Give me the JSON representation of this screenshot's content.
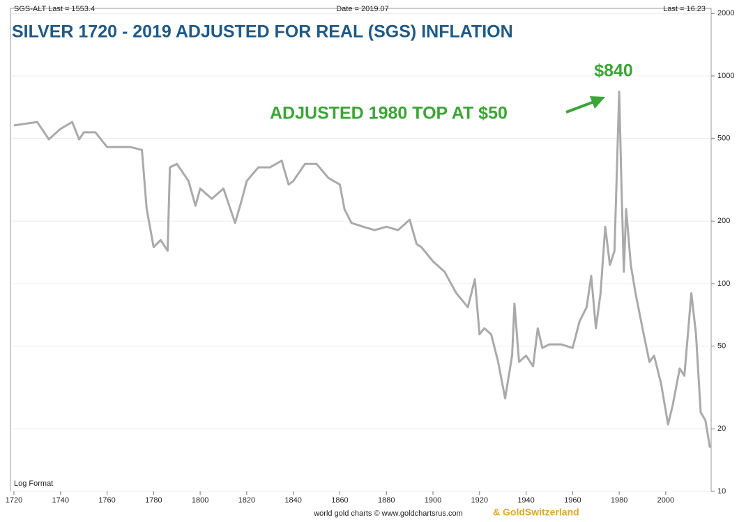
{
  "chart_data": {
    "type": "line",
    "header_left": "SGS-ALT Last = 1553.4",
    "header_center": "Date = 2019.07",
    "header_right": "Last = 16.23",
    "title": "SILVER 1720 - 2019 ADJUSTED FOR REAL (SGS) INFLATION",
    "annotations": [
      "$840",
      "ADJUSTED 1980 TOP AT $50"
    ],
    "scale_note": "Log Format",
    "footer": "world gold charts © www.goldchartsrus.com",
    "footer_brand": "& GoldSwitzerland",
    "log_scale": true,
    "grid": true,
    "xlim": [
      1718.5,
      2019.5
    ],
    "xticks": [
      1720,
      1740,
      1760,
      1780,
      1800,
      1820,
      1840,
      1860,
      1880,
      1900,
      1920,
      1940,
      1960,
      1980,
      2000
    ],
    "ylim": [
      10,
      2115
    ],
    "yticks": [
      10,
      20,
      50,
      100,
      200,
      500,
      1000,
      2000
    ],
    "series": [
      {
        "name": "SGS-ALT",
        "color": "#aaaaaa",
        "x": [
          1720,
          1730,
          1735,
          1740,
          1745,
          1748,
          1750,
          1755,
          1760,
          1765,
          1770,
          1775,
          1777,
          1780,
          1783,
          1786,
          1787,
          1790,
          1795,
          1798,
          1800,
          1805,
          1810,
          1815,
          1818,
          1820,
          1825,
          1830,
          1835,
          1838,
          1840,
          1845,
          1850,
          1855,
          1860,
          1862,
          1865,
          1870,
          1875,
          1880,
          1885,
          1890,
          1893,
          1895,
          1900,
          1905,
          1910,
          1915,
          1918,
          1920,
          1922,
          1925,
          1928,
          1931,
          1934,
          1935,
          1937,
          1940,
          1943,
          1945,
          1947,
          1950,
          1955,
          1960,
          1963,
          1966,
          1968,
          1970,
          1972,
          1974,
          1976,
          1978,
          1980,
          1981,
          1982,
          1983,
          1985,
          1987,
          1990,
          1993,
          1995,
          1998,
          2001,
          2003,
          2006,
          2008,
          2011,
          2013,
          2015,
          2017,
          2019
        ],
        "values": [
          578,
          600,
          495,
          556,
          600,
          495,
          535,
          535,
          455,
          455,
          455,
          440,
          230,
          150,
          162,
          144,
          363,
          377,
          312,
          237,
          287,
          256,
          287,
          196,
          256,
          312,
          363,
          363,
          391,
          300,
          312,
          377,
          377,
          323,
          300,
          228,
          196,
          188,
          181,
          188,
          181,
          203,
          155,
          150,
          128,
          114,
          90,
          77,
          105,
          57,
          61,
          57,
          42,
          28,
          45,
          80,
          42,
          45,
          40,
          61,
          49,
          51,
          51,
          49,
          66,
          77,
          109,
          61,
          90,
          188,
          123,
          144,
          840,
          287,
          114,
          229,
          123,
          90,
          61,
          42,
          45,
          33,
          21,
          26,
          39,
          36,
          90,
          57,
          24,
          22,
          16.23
        ]
      }
    ]
  }
}
